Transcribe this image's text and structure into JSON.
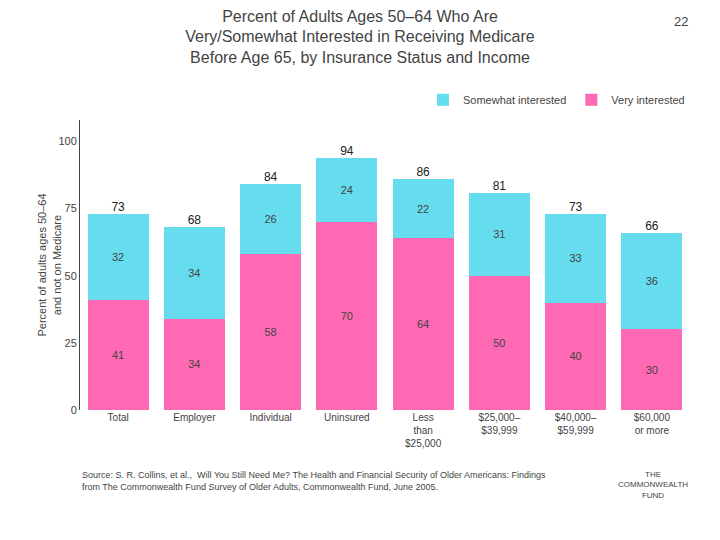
{
  "chart_data": {
    "type": "bar",
    "stacked": true,
    "title": "Percent of Adults Ages 50–64 Who Are\nVery/Somewhat Interested in Receiving Medicare\nBefore Age 65, by Insurance Status and Income",
    "categories": [
      "Total",
      "Employer",
      "Individual",
      "Uninsured",
      "Less\nthan\n$25,000",
      "$25,000–\n$39,999",
      "$40,000–\n$59,999",
      "$60,000\nor more"
    ],
    "series": [
      {
        "name": "Very interested",
        "color": "#FF69B4",
        "values": [
          41,
          34,
          58,
          70,
          64,
          50,
          40,
          30
        ]
      },
      {
        "name": "Somewhat interested",
        "color": "#66DDEE",
        "values": [
          32,
          34,
          26,
          24,
          22,
          31,
          33,
          36
        ]
      }
    ],
    "totals": [
      73,
      68,
      84,
      94,
      86,
      81,
      73,
      66
    ],
    "ylabel": "Percent of adults ages 50–64\nand not on Medicare",
    "ylim": [
      0,
      108
    ],
    "yticks": [
      0,
      25,
      50,
      75,
      100
    ],
    "data_labels": true,
    "legend": "upper right",
    "grid": false,
    "page_number": "22",
    "source": "Source: S. R. Collins, et al.,  Will You Still Need Me? The Health and Financial Security of Older Americans: Findings\nfrom The Commonwealth Fund Survey of Older Adults, Commonwealth Fund, June 2005.",
    "logo": [
      "THE",
      "COMMONWEALTH",
      "FUND"
    ]
  }
}
